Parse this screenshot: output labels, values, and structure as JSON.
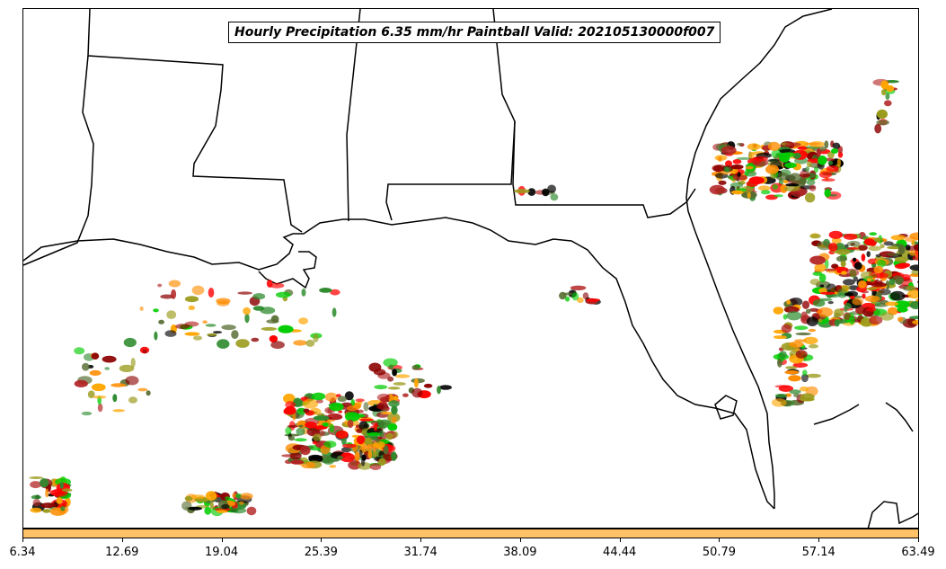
{
  "title": "Hourly Precipitation 6.35 mm/hr Paintball Valid: 202105130000f007",
  "colorbar": {
    "color": "#ffc266",
    "tick_labels": [
      "6.34",
      "12.69",
      "19.04",
      "25.39",
      "31.74",
      "38.09",
      "44.44",
      "50.79",
      "57.14",
      "63.49"
    ]
  },
  "palette": [
    "#ff0000",
    "#ff8c00",
    "#00cc00",
    "#8b0000",
    "#000000",
    "#9a9a1a",
    "#2e8b2e",
    "#b22222",
    "#ffa500",
    "#556b2f"
  ]
}
